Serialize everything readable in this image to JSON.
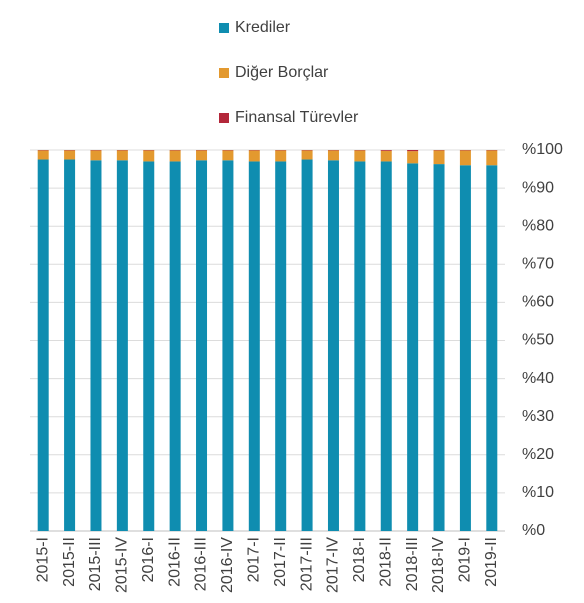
{
  "chart_data": {
    "type": "stacked_bar",
    "categories": [
      "2015-I",
      "2015-II",
      "2015-III",
      "2015-IV",
      "2016-I",
      "2016-II",
      "2016-III",
      "2016-IV",
      "2017-I",
      "2017-II",
      "2017-III",
      "2017-IV",
      "2018-I",
      "2018-II",
      "2018-III",
      "2018-IV",
      "2019-I",
      "2019-II"
    ],
    "series": [
      {
        "name": "Krediler",
        "color": "#0f8db0",
        "values": [
          97.5,
          97.5,
          97.3,
          97.3,
          97,
          97,
          97.3,
          97.3,
          97,
          97,
          97.5,
          97.3,
          97,
          97,
          96.5,
          96.3,
          96,
          96
        ]
      },
      {
        "name": "Diğer Borçlar",
        "color": "#e3992f",
        "values": [
          2.4,
          2.4,
          2.6,
          2.6,
          2.9,
          2.9,
          2.6,
          2.6,
          2.9,
          2.9,
          2.4,
          2.6,
          2.9,
          2.8,
          3.2,
          3.6,
          3.9,
          3.9
        ]
      },
      {
        "name": "Finansal Türevler",
        "color": "#b3273a",
        "values": [
          0.1,
          0.1,
          0.1,
          0.1,
          0.1,
          0.1,
          0.1,
          0.1,
          0.1,
          0.1,
          0.1,
          0.1,
          0.1,
          0.2,
          0.3,
          0.1,
          0.1,
          0.1
        ]
      }
    ],
    "ylim": [
      0,
      100
    ],
    "yticks": [
      {
        "value": 0,
        "label": "%0"
      },
      {
        "value": 10,
        "label": "%10"
      },
      {
        "value": 20,
        "label": "%20"
      },
      {
        "value": 30,
        "label": "%30"
      },
      {
        "value": 40,
        "label": "%40"
      },
      {
        "value": 50,
        "label": "%50"
      },
      {
        "value": 60,
        "label": "%60"
      },
      {
        "value": 70,
        "label": "%70"
      },
      {
        "value": 80,
        "label": "%80"
      },
      {
        "value": 90,
        "label": "%90"
      },
      {
        "value": 100,
        "label": "%100"
      }
    ],
    "grid": true
  }
}
